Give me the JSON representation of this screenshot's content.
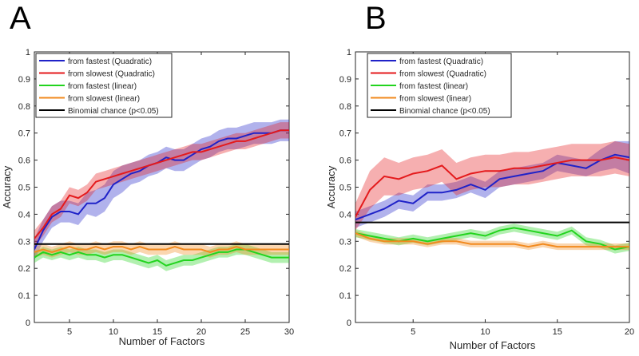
{
  "chart_data": [
    {
      "type": "line",
      "panel_label": "A",
      "xlabel": "Number of Factors",
      "ylabel": "Accuracy",
      "xlim": [
        1,
        30
      ],
      "ylim": [
        0,
        1
      ],
      "xticks": [
        5,
        10,
        15,
        20,
        25,
        30
      ],
      "yticks": [
        0,
        0.1,
        0.2,
        0.3,
        0.4,
        0.5,
        0.6,
        0.7,
        0.8,
        0.9,
        1
      ],
      "legend_position": "top-left",
      "x": [
        1,
        2,
        3,
        4,
        5,
        6,
        7,
        8,
        9,
        10,
        11,
        12,
        13,
        14,
        15,
        16,
        17,
        18,
        19,
        20,
        21,
        22,
        23,
        24,
        25,
        26,
        27,
        28,
        29,
        30
      ],
      "series": [
        {
          "name": "from fastest (Quadratic)",
          "color": "#1f22c8",
          "values": [
            0.27,
            0.34,
            0.39,
            0.41,
            0.41,
            0.4,
            0.44,
            0.44,
            0.46,
            0.51,
            0.53,
            0.55,
            0.56,
            0.58,
            0.59,
            0.61,
            0.6,
            0.6,
            0.62,
            0.64,
            0.65,
            0.67,
            0.68,
            0.68,
            0.69,
            0.7,
            0.7,
            0.7,
            0.71,
            0.71
          ],
          "band": [
            0.04,
            0.04,
            0.04,
            0.04,
            0.04,
            0.04,
            0.04,
            0.05,
            0.05,
            0.05,
            0.05,
            0.04,
            0.04,
            0.04,
            0.04,
            0.04,
            0.04,
            0.04,
            0.04,
            0.04,
            0.04,
            0.04,
            0.04,
            0.04,
            0.04,
            0.04,
            0.04,
            0.04,
            0.04,
            0.04
          ]
        },
        {
          "name": "from slowest (Quadratic)",
          "color": "#e41a1c",
          "values": [
            0.31,
            0.35,
            0.4,
            0.42,
            0.47,
            0.46,
            0.48,
            0.52,
            0.53,
            0.54,
            0.55,
            0.56,
            0.57,
            0.58,
            0.59,
            0.6,
            0.61,
            0.62,
            0.63,
            0.63,
            0.64,
            0.65,
            0.66,
            0.67,
            0.67,
            0.68,
            0.69,
            0.7,
            0.71,
            0.71
          ],
          "band": [
            0.03,
            0.03,
            0.03,
            0.03,
            0.03,
            0.03,
            0.03,
            0.03,
            0.03,
            0.03,
            0.03,
            0.03,
            0.03,
            0.03,
            0.03,
            0.03,
            0.03,
            0.03,
            0.03,
            0.03,
            0.03,
            0.03,
            0.03,
            0.03,
            0.03,
            0.03,
            0.03,
            0.03,
            0.03,
            0.03
          ]
        },
        {
          "name": "from fastest (linear)",
          "color": "#22d41e",
          "values": [
            0.24,
            0.26,
            0.25,
            0.26,
            0.25,
            0.26,
            0.25,
            0.25,
            0.24,
            0.25,
            0.25,
            0.24,
            0.23,
            0.22,
            0.23,
            0.21,
            0.22,
            0.23,
            0.23,
            0.24,
            0.25,
            0.26,
            0.26,
            0.27,
            0.27,
            0.26,
            0.25,
            0.24,
            0.24,
            0.24
          ],
          "band": [
            0.02,
            0.02,
            0.02,
            0.02,
            0.02,
            0.02,
            0.02,
            0.02,
            0.02,
            0.02,
            0.02,
            0.02,
            0.02,
            0.02,
            0.02,
            0.02,
            0.02,
            0.02,
            0.02,
            0.02,
            0.02,
            0.02,
            0.02,
            0.02,
            0.02,
            0.02,
            0.02,
            0.02,
            0.02,
            0.02
          ]
        },
        {
          "name": "from slowest (linear)",
          "color": "#f28a1e",
          "values": [
            0.26,
            0.27,
            0.26,
            0.27,
            0.28,
            0.27,
            0.27,
            0.28,
            0.27,
            0.28,
            0.28,
            0.27,
            0.28,
            0.27,
            0.27,
            0.27,
            0.28,
            0.27,
            0.27,
            0.27,
            0.26,
            0.27,
            0.27,
            0.28,
            0.27,
            0.27,
            0.27,
            0.27,
            0.27,
            0.27
          ],
          "band": [
            0.02,
            0.02,
            0.02,
            0.02,
            0.02,
            0.02,
            0.02,
            0.02,
            0.02,
            0.02,
            0.02,
            0.02,
            0.02,
            0.02,
            0.02,
            0.02,
            0.02,
            0.02,
            0.02,
            0.02,
            0.02,
            0.02,
            0.02,
            0.02,
            0.02,
            0.02,
            0.02,
            0.02,
            0.02,
            0.02
          ]
        }
      ],
      "reference_line": {
        "name": "Binomial chance (p<0.05)",
        "color": "#000000",
        "value": 0.29
      }
    },
    {
      "type": "line",
      "panel_label": "B",
      "xlabel": "Number of Factors",
      "ylabel": "Accuracy",
      "xlim": [
        1,
        20
      ],
      "ylim": [
        0,
        1
      ],
      "xticks": [
        5,
        10,
        15,
        20
      ],
      "yticks": [
        0,
        0.1,
        0.2,
        0.3,
        0.4,
        0.5,
        0.6,
        0.7,
        0.8,
        0.9,
        1
      ],
      "legend_position": "top-left",
      "x": [
        1,
        2,
        3,
        4,
        5,
        6,
        7,
        8,
        9,
        10,
        11,
        12,
        13,
        14,
        15,
        16,
        17,
        18,
        19,
        20
      ],
      "series": [
        {
          "name": "from fastest (Quadratic)",
          "color": "#1f22c8",
          "values": [
            0.38,
            0.4,
            0.42,
            0.45,
            0.44,
            0.48,
            0.48,
            0.49,
            0.51,
            0.49,
            0.53,
            0.54,
            0.55,
            0.56,
            0.59,
            0.58,
            0.57,
            0.6,
            0.62,
            0.61
          ],
          "band": [
            0.03,
            0.03,
            0.03,
            0.03,
            0.03,
            0.03,
            0.03,
            0.03,
            0.03,
            0.03,
            0.03,
            0.03,
            0.03,
            0.03,
            0.03,
            0.03,
            0.03,
            0.04,
            0.05,
            0.06
          ]
        },
        {
          "name": "from slowest (Quadratic)",
          "color": "#e41a1c",
          "values": [
            0.39,
            0.49,
            0.54,
            0.53,
            0.55,
            0.56,
            0.58,
            0.53,
            0.55,
            0.56,
            0.56,
            0.57,
            0.57,
            0.58,
            0.59,
            0.6,
            0.6,
            0.6,
            0.61,
            0.6
          ],
          "band": [
            0.05,
            0.07,
            0.07,
            0.06,
            0.06,
            0.06,
            0.06,
            0.06,
            0.06,
            0.06,
            0.06,
            0.06,
            0.06,
            0.06,
            0.06,
            0.06,
            0.06,
            0.06,
            0.06,
            0.06
          ]
        },
        {
          "name": "from fastest (linear)",
          "color": "#22d41e",
          "values": [
            0.33,
            0.32,
            0.31,
            0.3,
            0.31,
            0.3,
            0.31,
            0.32,
            0.33,
            0.32,
            0.34,
            0.35,
            0.34,
            0.33,
            0.32,
            0.34,
            0.3,
            0.29,
            0.27,
            0.28
          ],
          "band": [
            0.015,
            0.015,
            0.015,
            0.015,
            0.015,
            0.015,
            0.015,
            0.015,
            0.015,
            0.015,
            0.015,
            0.015,
            0.015,
            0.015,
            0.015,
            0.015,
            0.015,
            0.015,
            0.015,
            0.015
          ]
        },
        {
          "name": "from slowest (linear)",
          "color": "#f28a1e",
          "values": [
            0.33,
            0.31,
            0.3,
            0.3,
            0.3,
            0.29,
            0.3,
            0.3,
            0.29,
            0.29,
            0.29,
            0.29,
            0.28,
            0.29,
            0.28,
            0.28,
            0.28,
            0.28,
            0.28,
            0.28
          ],
          "band": [
            0.012,
            0.012,
            0.012,
            0.012,
            0.012,
            0.012,
            0.012,
            0.012,
            0.012,
            0.012,
            0.012,
            0.012,
            0.012,
            0.012,
            0.012,
            0.012,
            0.012,
            0.012,
            0.012,
            0.012
          ]
        }
      ],
      "reference_line": {
        "name": "Binomial chance (p<0.05)",
        "color": "#000000",
        "value": 0.37
      }
    }
  ]
}
